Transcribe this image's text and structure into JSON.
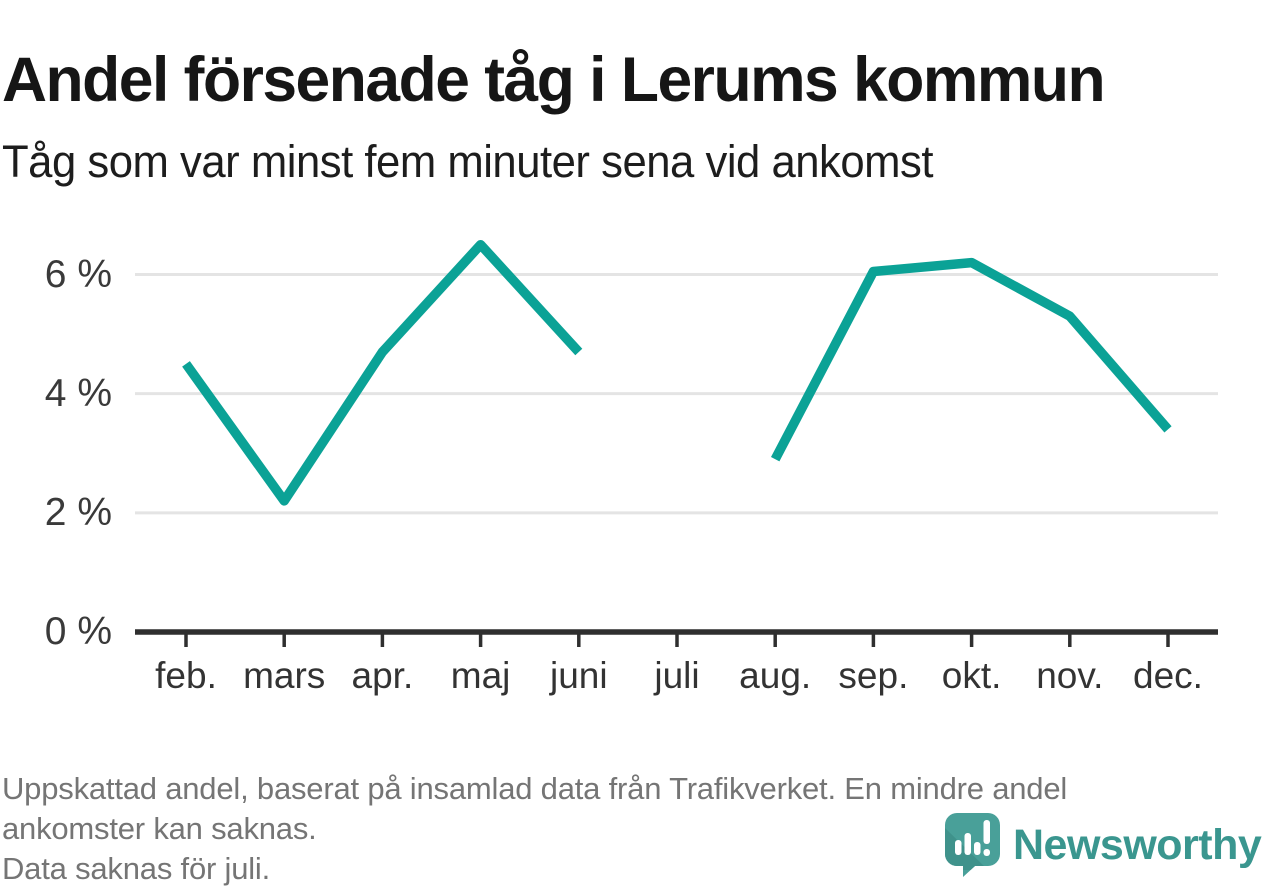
{
  "header": {
    "title": "Andel försenade tåg i Lerums kommun",
    "subtitle": "Tåg som var minst fem minuter sena vid ankomst"
  },
  "chart_data": {
    "type": "line",
    "title": "Andel försenade tåg i Lerums kommun",
    "subtitle": "Tåg som var minst fem minuter sena vid ankomst",
    "categories": [
      "feb.",
      "mars",
      "apr.",
      "maj",
      "juni",
      "juli",
      "aug.",
      "sep.",
      "okt.",
      "nov.",
      "dec."
    ],
    "series": [
      {
        "name": "Andel försenade tåg",
        "values": [
          4.5,
          2.2,
          4.7,
          6.5,
          4.7,
          null,
          2.9,
          6.05,
          6.2,
          5.3,
          3.4
        ]
      }
    ],
    "unit": "%",
    "yticks": [
      0,
      2,
      4,
      6
    ],
    "ytick_labels": [
      "0 %",
      "2 %",
      "4 %",
      "6 %"
    ],
    "ylim": [
      0,
      6.9
    ],
    "grid": "horizontal",
    "legend": "none",
    "missing_note": "Data saknas för juli.",
    "colors": {
      "line": "#0ba296",
      "axis": "#2f2f2f",
      "gridline": "#e4e4e4",
      "tick_label": "#333333"
    }
  },
  "footer": {
    "lines": [
      "Uppskattad andel, baserat på insamlad data från Trafikverket. En mindre andel",
      "ankomster kan saknas.",
      "Data saknas för juli."
    ],
    "brand": "Newsworthy",
    "brand_color": "#3a968f"
  }
}
